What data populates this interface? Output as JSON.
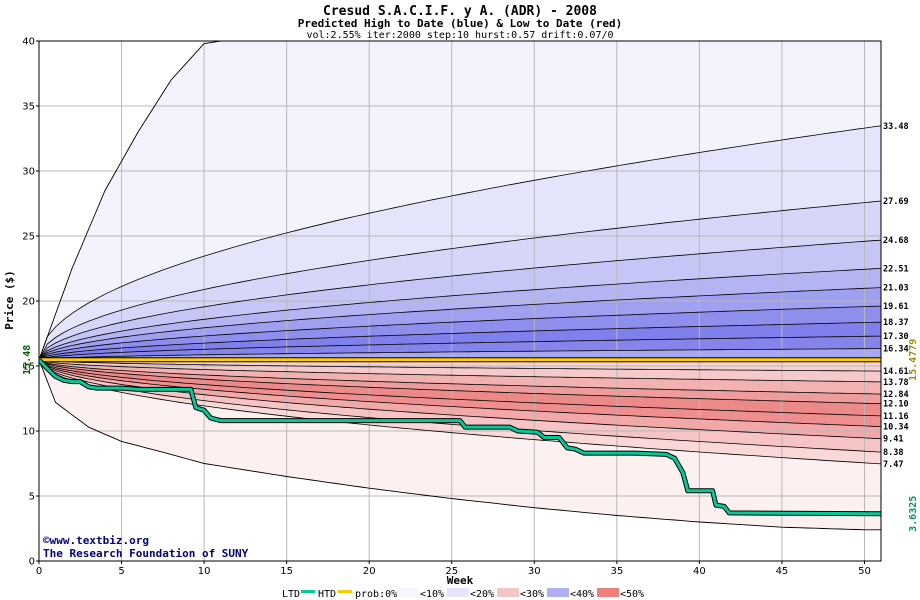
{
  "chart_data": {
    "type": "area",
    "title": "Cresud S.A.C.I.F. y A. (ADR) - 2008",
    "subtitle": "Predicted High to Date (blue) &  Low to Date (red)",
    "params": "vol:2.55% iter:2000 step:10 hurst:0.57 drift:0.07/0",
    "xlabel": "Week",
    "ylabel": "Price ($)",
    "xlim": [
      0,
      51
    ],
    "ylim": [
      0,
      40
    ],
    "x_ticks": [
      "0",
      "5",
      "10",
      "15",
      "20",
      "25",
      "30",
      "35",
      "40",
      "45",
      "50"
    ],
    "y_ticks": [
      "0",
      "5",
      "10",
      "15",
      "20",
      "25",
      "30",
      "35",
      "40"
    ],
    "grid": true,
    "start_price": 15.48,
    "start_price_label": "15.48",
    "reference_value": 15.4779,
    "reference_label": "15.4779",
    "last_price_label": "3.6325",
    "upper_envelope_peak": [
      [
        0,
        15.48
      ],
      [
        2,
        22.5
      ],
      [
        4,
        28.5
      ],
      [
        6,
        33
      ],
      [
        8,
        37
      ],
      [
        10,
        39.8
      ],
      [
        11,
        40
      ],
      [
        51,
        40
      ]
    ],
    "lower_envelope": [
      [
        0,
        15.48
      ],
      [
        1,
        12.2
      ],
      [
        3,
        10.3
      ],
      [
        5,
        9.2
      ],
      [
        8,
        8.2
      ],
      [
        10,
        7.5
      ],
      [
        15,
        6.5
      ],
      [
        20,
        5.6
      ],
      [
        25,
        4.8
      ],
      [
        30,
        4.1
      ],
      [
        35,
        3.5
      ],
      [
        40,
        3.0
      ],
      [
        45,
        2.6
      ],
      [
        50,
        2.4
      ]
    ],
    "quantile_values": [
      33.48,
      27.69,
      24.68,
      22.51,
      21.03,
      19.61,
      18.37,
      17.3,
      16.34,
      14.61,
      13.78,
      12.84,
      12.1,
      11.16,
      10.34,
      9.41,
      8.38,
      7.47
    ],
    "quantile_labels": [
      "33.48",
      "27.69",
      "24.68",
      "22.51",
      "21.03",
      "19.61",
      "18.37",
      "17.30",
      "16.34",
      "14.61",
      "13.78",
      "12.84",
      "12.10",
      "11.16",
      "10.34",
      "9.41",
      "8.38",
      "7.47"
    ],
    "series": [
      {
        "name": "HTD",
        "color": "#ffcc00",
        "points": [
          [
            0,
            15.48
          ],
          [
            51,
            15.48
          ]
        ]
      },
      {
        "name": "LTD",
        "color": "#00cc99",
        "points": [
          [
            0,
            15.48
          ],
          [
            0.5,
            14.8
          ],
          [
            1,
            14.2
          ],
          [
            1.5,
            13.9
          ],
          [
            2,
            13.8
          ],
          [
            2.5,
            13.8
          ],
          [
            3,
            13.4
          ],
          [
            3.5,
            13.3
          ],
          [
            5,
            13.3
          ],
          [
            6,
            13.2
          ],
          [
            8,
            13.2
          ],
          [
            9.2,
            13.2
          ],
          [
            9.5,
            11.8
          ],
          [
            10,
            11.6
          ],
          [
            10.4,
            11.0
          ],
          [
            11,
            10.8
          ],
          [
            15,
            10.8
          ],
          [
            20,
            10.8
          ],
          [
            25.5,
            10.8
          ],
          [
            25.8,
            10.3
          ],
          [
            28.5,
            10.3
          ],
          [
            29,
            10.0
          ],
          [
            30.2,
            9.9
          ],
          [
            30.6,
            9.5
          ],
          [
            31.5,
            9.5
          ],
          [
            32,
            8.7
          ],
          [
            32.5,
            8.6
          ],
          [
            33,
            8.3
          ],
          [
            36,
            8.3
          ],
          [
            38,
            8.2
          ],
          [
            38.5,
            7.9
          ],
          [
            39,
            6.8
          ],
          [
            39.3,
            5.4
          ],
          [
            40.8,
            5.4
          ],
          [
            41,
            4.3
          ],
          [
            41.5,
            4.2
          ],
          [
            41.8,
            3.7
          ],
          [
            51,
            3.63
          ]
        ]
      }
    ],
    "legend": {
      "position": "bottom",
      "ltd": "LTD",
      "htd": "HTD",
      "prob_label": "prob:0%",
      "bins": [
        "<10%",
        "<20%",
        "<30%",
        "<40%",
        "<50%"
      ]
    },
    "colors": {
      "htd": "#ffcc00",
      "ltd": "#00cc99",
      "blue_band": "#6666ee",
      "red_band": "#ee5555",
      "start_label": "#006600",
      "ref_label": "#aa8800",
      "last_label": "#009966"
    }
  },
  "credits": {
    "line1": "©www.textbiz.org",
    "line2": "The Research Foundation of SUNY"
  }
}
